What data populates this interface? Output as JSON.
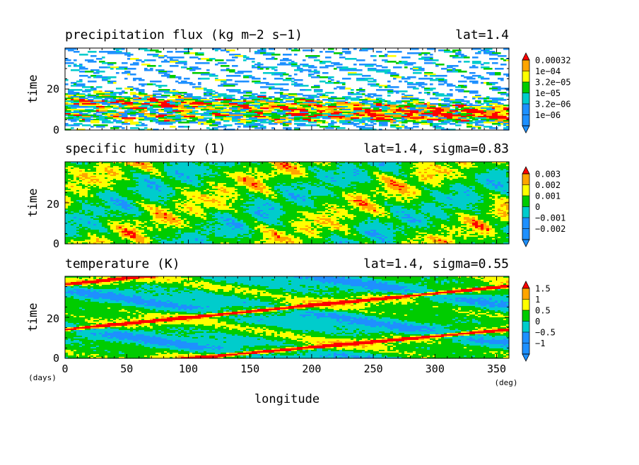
{
  "palette": [
    "#1e90ff",
    "#00cccc",
    "#00cc00",
    "#ffff00",
    "#ffa500",
    "#ff0000"
  ],
  "chart_data": [
    {
      "type": "heatmap",
      "title": "precipitation flux (kg m−2 s−1)",
      "subtitle": "lat=1.4",
      "ylabel": "time",
      "x_range": [
        0,
        360
      ],
      "y_range": [
        0,
        40
      ],
      "y_ticks": [
        "0",
        "20"
      ],
      "colorbar_levels": [
        "1e−06",
        "3.2e−06",
        "1e−05",
        "3.2e−05",
        "1e−04",
        "0.00032"
      ],
      "pattern": "sparse"
    },
    {
      "type": "heatmap",
      "title": "specific humidity (1)",
      "subtitle": "lat=1.4, sigma=0.83",
      "ylabel": "time",
      "x_range": [
        0,
        360
      ],
      "y_range": [
        0,
        40
      ],
      "y_ticks": [
        "0",
        "20"
      ],
      "colorbar_levels": [
        "−0.002",
        "−0.001",
        "0",
        "0.001",
        "0.002",
        "0.003"
      ],
      "pattern": "blobs"
    },
    {
      "type": "heatmap",
      "title": "temperature (K)",
      "subtitle": "lat=1.4, sigma=0.55",
      "ylabel": "time",
      "xlabel": "longitude",
      "x_range": [
        0,
        360
      ],
      "y_range": [
        0,
        40
      ],
      "x_ticks": [
        "0",
        "50",
        "100",
        "150",
        "200",
        "250",
        "300",
        "350"
      ],
      "y_ticks": [
        "0",
        "20"
      ],
      "colorbar_levels": [
        "−1",
        "−0.5",
        "0",
        "0.5",
        "1",
        "1.5"
      ],
      "pattern": "waves"
    }
  ],
  "x_unit": "(deg)",
  "y_unit": "(days)"
}
